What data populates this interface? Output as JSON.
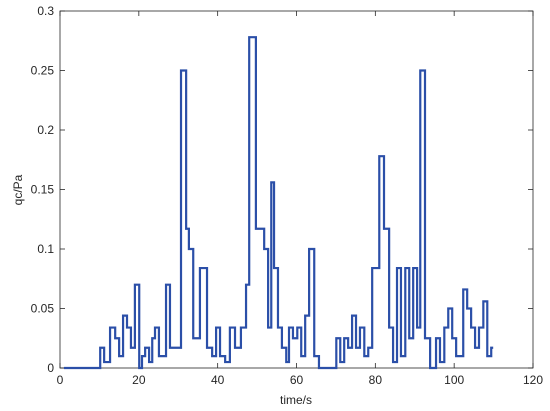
{
  "chart_data": {
    "type": "line",
    "step": "post",
    "color": "#2b4fa8",
    "xlabel": "time/s",
    "ylabel": "qc/Pa",
    "x": [
      1,
      10.2,
      11.2,
      12.7,
      14.0,
      15.0,
      16.0,
      17.0,
      18.0,
      19.0,
      20.1,
      20.8,
      21.6,
      22.6,
      23.4,
      24.1,
      25.1,
      26.9,
      27.9,
      30.7,
      32.0,
      32.7,
      33.8,
      35.5,
      37.3,
      38.6,
      39.6,
      40.6,
      41.9,
      43.1,
      44.4,
      45.9,
      47.2,
      48.0,
      49.7,
      51.8,
      52.8,
      53.6,
      54.3,
      55.3,
      56.3,
      57.4,
      58.1,
      59.1,
      60.2,
      61.2,
      62.2,
      63.2,
      64.5,
      65.7,
      70.1,
      71.1,
      72.1,
      73.1,
      74.1,
      75.1,
      76.1,
      77.2,
      78.2,
      79.2,
      81.0,
      82.2,
      83.5,
      84.5,
      85.5,
      86.5,
      87.6,
      88.6,
      89.6,
      90.6,
      91.4,
      92.6,
      93.9,
      95.4,
      96.4,
      97.5,
      98.5,
      99.5,
      100.5,
      102.3,
      103.3,
      104.3,
      105.3,
      106.3,
      107.4,
      108.4,
      109.4,
      109.9
    ],
    "values": [
      0,
      0.017,
      0.005,
      0.034,
      0.025,
      0.01,
      0.044,
      0.034,
      0.017,
      0.07,
      0,
      0.01,
      0.017,
      0.005,
      0.025,
      0.034,
      0.01,
      0.07,
      0.017,
      0.25,
      0.117,
      0.1,
      0.025,
      0.084,
      0.017,
      0.01,
      0.034,
      0.01,
      0.005,
      0.034,
      0.017,
      0.034,
      0.07,
      0.278,
      0.117,
      0.1,
      0.034,
      0.156,
      0.084,
      0.034,
      0.017,
      0.005,
      0.034,
      0.025,
      0.034,
      0.01,
      0.044,
      0.1,
      0.01,
      0,
      0.025,
      0.005,
      0.025,
      0.017,
      0.044,
      0.017,
      0.034,
      0.01,
      0.017,
      0.084,
      0.178,
      0.117,
      0.034,
      0.005,
      0.084,
      0.01,
      0.084,
      0.025,
      0.084,
      0.034,
      0.25,
      0.025,
      0,
      0.025,
      0.005,
      0.034,
      0.05,
      0.025,
      0.01,
      0.066,
      0.05,
      0.034,
      0.017,
      0.034,
      0.056,
      0.01,
      0.017,
      0.017
    ],
    "xlim": [
      0,
      120
    ],
    "xticks": [
      0,
      20,
      40,
      60,
      80,
      100,
      120
    ],
    "ylim": [
      0,
      0.3
    ],
    "yticks": [
      0,
      0.05,
      0.1,
      0.15,
      0.2,
      0.25,
      0.3
    ]
  }
}
